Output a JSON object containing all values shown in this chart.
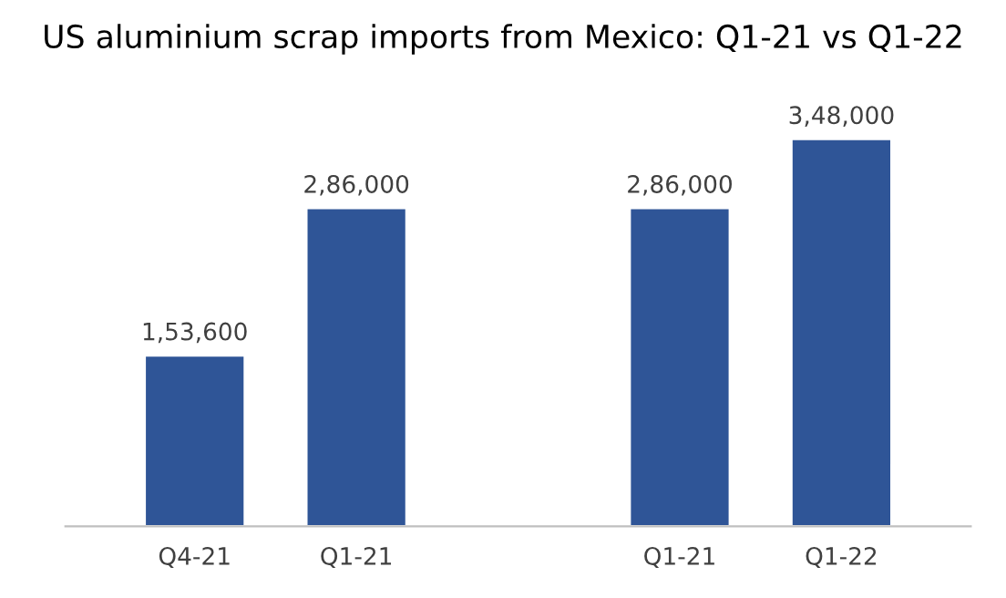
{
  "chart_data": {
    "type": "bar",
    "title": "US aluminium scrap imports from Mexico: Q1-21 vs Q1-22",
    "categories": [
      "Q4-21",
      "Q1-21",
      null,
      "Q1-21",
      "Q1-22"
    ],
    "values": [
      153600,
      286000,
      null,
      286000,
      348000
    ],
    "value_labels": [
      "1,53,600",
      "2,86,000",
      null,
      "2,86,000",
      "3,48,000"
    ],
    "color": "#2f5597",
    "grid": false,
    "legend": false
  }
}
